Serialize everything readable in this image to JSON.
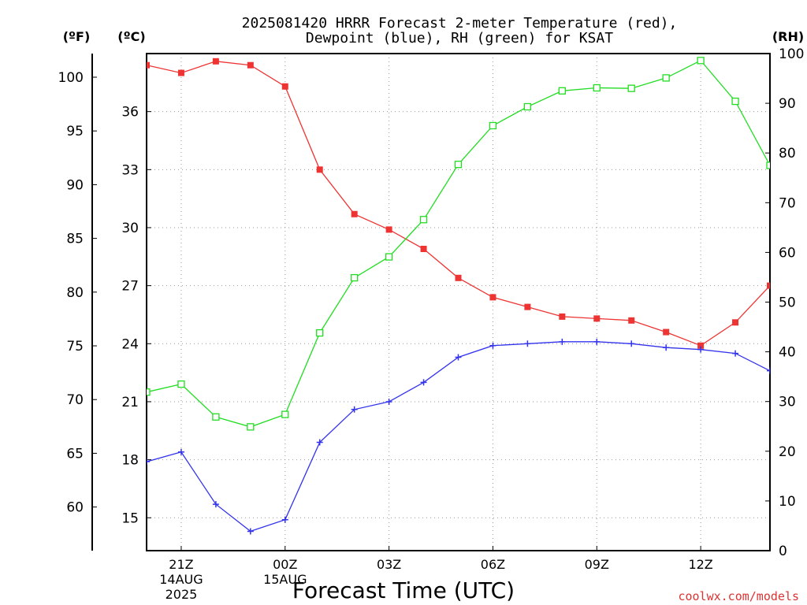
{
  "chart_data": {
    "type": "line",
    "title_line1": "2025081420 HRRR Forecast 2-meter Temperature (red),",
    "title_line2": "Dewpoint (blue), RH (green) for KSAT",
    "xlabel": "Forecast Time (UTC)",
    "watermark": "coolwx.com/models",
    "left_outer_axis": {
      "label": "(ºF)",
      "ticks": [
        60,
        65,
        70,
        75,
        80,
        85,
        90,
        95,
        100
      ]
    },
    "left_inner_axis": {
      "label": "(ºC)",
      "ticks": [
        15,
        18,
        21,
        24,
        27,
        30,
        33,
        36
      ],
      "ylim": [
        13.3,
        39.0
      ]
    },
    "right_axis": {
      "label": "(RH)",
      "ticks": [
        0,
        10,
        20,
        30,
        40,
        50,
        60,
        70,
        80,
        90,
        100
      ],
      "ylim": [
        0,
        100
      ]
    },
    "x_ticks": [
      {
        "hour": 1,
        "label": "21Z",
        "sub": [
          "14AUG",
          "2025"
        ]
      },
      {
        "hour": 4,
        "label": "00Z",
        "sub": [
          "15AUG"
        ]
      },
      {
        "hour": 7,
        "label": "03Z",
        "sub": []
      },
      {
        "hour": 10,
        "label": "06Z",
        "sub": []
      },
      {
        "hour": 13,
        "label": "09Z",
        "sub": []
      },
      {
        "hour": 16,
        "label": "12Z",
        "sub": []
      }
    ],
    "xlim": [
      0,
      18
    ],
    "grid": true,
    "colors": {
      "temperature": "#ee3333",
      "dewpoint": "#3333ee",
      "rh": "#22dd22"
    },
    "series": [
      {
        "name": "Temperature",
        "axis": "celsius",
        "marker": "filled-square",
        "x": [
          0,
          1,
          2,
          3,
          4,
          5,
          6,
          7,
          8,
          9,
          10,
          11,
          12,
          13,
          14,
          15,
          16,
          17,
          18
        ],
        "values": [
          38.4,
          38.0,
          38.6,
          38.4,
          37.3,
          33.0,
          30.7,
          29.9,
          28.9,
          27.4,
          26.4,
          25.9,
          25.4,
          25.3,
          25.2,
          24.6,
          23.9,
          25.1,
          27.0
        ]
      },
      {
        "name": "Dewpoint",
        "axis": "celsius",
        "marker": "plus",
        "x": [
          0,
          1,
          2,
          3,
          4,
          5,
          6,
          7,
          8,
          9,
          10,
          11,
          12,
          13,
          14,
          15,
          16,
          17,
          18
        ],
        "values": [
          17.9,
          18.4,
          15.7,
          14.3,
          14.9,
          18.9,
          20.6,
          21.0,
          22.0,
          23.3,
          23.9,
          24.0,
          24.1,
          24.1,
          24.0,
          23.8,
          23.7,
          23.5,
          22.6
        ]
      },
      {
        "name": "RH",
        "axis": "rh",
        "marker": "open-square",
        "x": [
          0,
          1,
          2,
          3,
          4,
          5,
          6,
          7,
          8,
          9,
          10,
          11,
          12,
          13,
          14,
          15,
          16,
          17,
          18
        ],
        "values": [
          31.9,
          33.5,
          26.9,
          24.9,
          27.4,
          43.8,
          54.9,
          59.1,
          66.6,
          77.7,
          85.5,
          89.3,
          92.5,
          93.1,
          93.0,
          95.1,
          98.6,
          90.4,
          77.5
        ]
      }
    ]
  }
}
